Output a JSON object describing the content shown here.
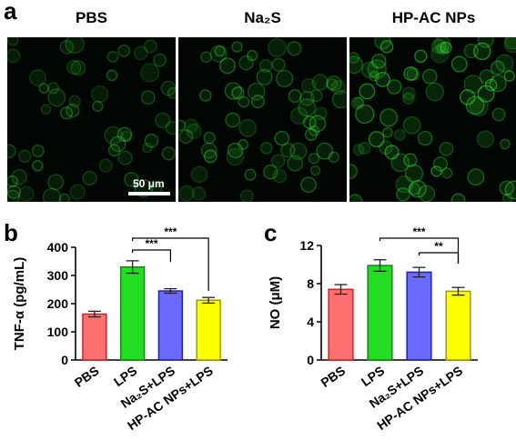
{
  "panels": {
    "a": "a",
    "b": "b",
    "c": "c"
  },
  "microscopy": {
    "titles": [
      "PBS",
      "Na₂S",
      "HP-AC NPs"
    ],
    "scale_bar": "50 μm",
    "brightness": [
      0.55,
      0.75,
      1.0
    ],
    "color": "#3cff3c"
  },
  "chart_data": [
    {
      "type": "bar",
      "categories": [
        "PBS",
        "LPS",
        "Na₂S+LPS",
        "HP-AC NPs+LPS"
      ],
      "values": [
        163,
        330,
        245,
        212
      ],
      "errors": [
        10,
        22,
        8,
        10
      ],
      "colors": [
        "#ff7070",
        "#22dd22",
        "#6a6aff",
        "#ffff00"
      ],
      "edge_colors": [
        "#cc2222",
        "#118811",
        "#2222aa",
        "#999900"
      ],
      "ylabel": "TNF-α (pg/mL)",
      "ylim": [
        0,
        400
      ],
      "yticks": [
        0,
        100,
        200,
        300,
        400
      ],
      "significance": [
        {
          "from": 1,
          "to": 2,
          "label": "***"
        },
        {
          "from": 1,
          "to": 3,
          "label": "***"
        }
      ]
    },
    {
      "type": "bar",
      "categories": [
        "PBS",
        "LPS",
        "Na₂S+LPS",
        "HP-AC NPs+LPS"
      ],
      "values": [
        7.4,
        9.9,
        9.2,
        7.2
      ],
      "errors": [
        0.5,
        0.6,
        0.5,
        0.4
      ],
      "colors": [
        "#ff7070",
        "#22dd22",
        "#6a6aff",
        "#ffff00"
      ],
      "edge_colors": [
        "#cc2222",
        "#118811",
        "#2222aa",
        "#999900"
      ],
      "ylabel": "NO (μM)",
      "ylim": [
        0,
        12
      ],
      "yticks": [
        0,
        4,
        8,
        12
      ],
      "significance": [
        {
          "from": 1,
          "to": 3,
          "label": "***"
        },
        {
          "from": 2,
          "to": 3,
          "label": "**"
        }
      ]
    }
  ]
}
